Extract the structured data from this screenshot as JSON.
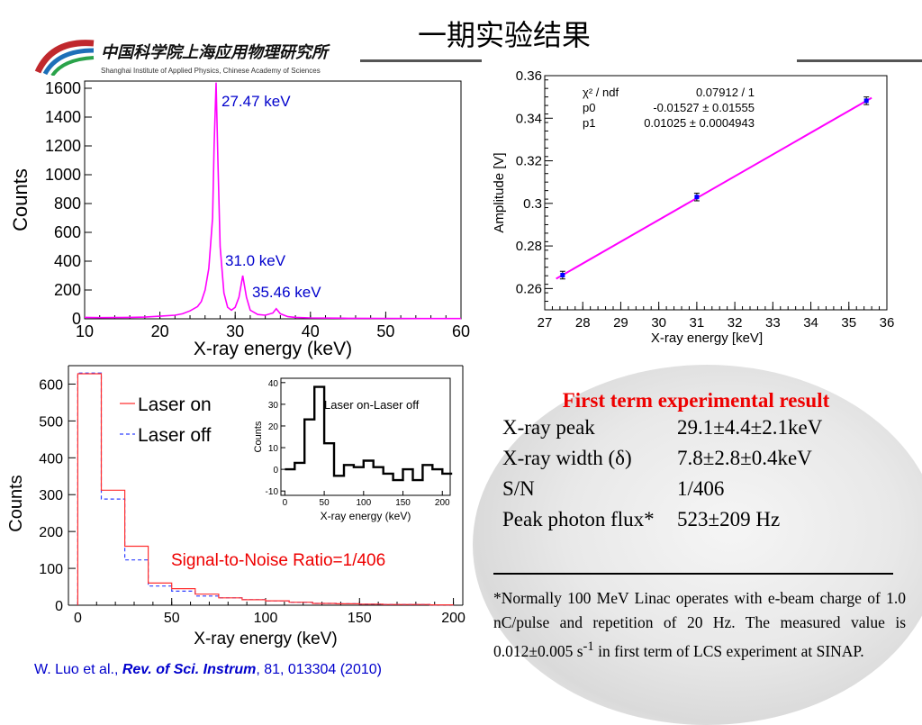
{
  "slide_title": "一期实验结果",
  "logo": {
    "institute_cn": "中国科学院上海应用物理研究所",
    "institute_en": "Shanghai Institute of Applied Physics, Chinese Academy of Sciences"
  },
  "colors": {
    "red": "#ee0000",
    "magenta": "#ff00ff",
    "blue": "#0000cc",
    "navy": "#000080"
  },
  "chart_data": [
    {
      "type": "line",
      "xlabel": "X-ray energy (keV)",
      "ylabel": "Counts",
      "xlim": [
        10,
        60
      ],
      "ylim": [
        0,
        1650
      ],
      "xticks": [
        "10",
        "20",
        "30",
        "40",
        "50",
        "60"
      ],
      "yticks": [
        "0",
        "200",
        "400",
        "600",
        "800",
        "1000",
        "1200",
        "1400",
        "1600"
      ],
      "annotations": [
        "27.47 keV",
        "31.0 keV",
        "35.46 keV"
      ],
      "series": [
        {
          "x": [
            10,
            12,
            14,
            16,
            18,
            20,
            22,
            23,
            24,
            25,
            25.5,
            26,
            26.5,
            27,
            27.2,
            27.47,
            27.7,
            28,
            28.5,
            29,
            29.5,
            30,
            30.5,
            31,
            31.5,
            32,
            33,
            34,
            35,
            35.46,
            36,
            37,
            38,
            40,
            45,
            50,
            55,
            60
          ],
          "y": [
            10,
            8,
            9,
            10,
            12,
            18,
            25,
            35,
            55,
            85,
            120,
            200,
            350,
            700,
            1200,
            1640,
            1100,
            500,
            180,
            80,
            60,
            80,
            150,
            300,
            150,
            60,
            30,
            25,
            40,
            70,
            35,
            15,
            10,
            6,
            4,
            3,
            2,
            2
          ]
        }
      ]
    },
    {
      "type": "scatter",
      "xlabel": "X-ray energy [keV]",
      "ylabel": "Amplitude [V]",
      "xlim": [
        27,
        36
      ],
      "ylim": [
        0.25,
        0.36
      ],
      "xticks": [
        "27",
        "28",
        "29",
        "30",
        "31",
        "32",
        "33",
        "34",
        "35",
        "36"
      ],
      "yticks": [
        "0.26",
        "0.28",
        "0.3",
        "0.32",
        "0.34",
        "0.36"
      ],
      "fit_stats": [
        {
          "label": "χ² / ndf",
          "value": "0.07912 / 1"
        },
        {
          "label": "p0",
          "value": "-0.01527 ± 0.01555"
        },
        {
          "label": "p1",
          "value": "0.01025 ± 0.0004943"
        }
      ],
      "points": [
        {
          "x": 27.47,
          "y": 0.2663,
          "err": 0.0018
        },
        {
          "x": 31.0,
          "y": 0.303,
          "err": 0.0018
        },
        {
          "x": 35.46,
          "y": 0.3482,
          "err": 0.0018
        }
      ],
      "fit": {
        "x": [
          27.3,
          35.6
        ],
        "y": [
          0.2646,
          0.3496
        ]
      }
    },
    {
      "type": "line",
      "xlabel": "X-ray energy (keV)",
      "ylabel": "Counts",
      "xlim": [
        -5,
        205
      ],
      "ylim": [
        0,
        650
      ],
      "xticks": [
        "0",
        "50",
        "100",
        "150",
        "200"
      ],
      "yticks": [
        "0",
        "100",
        "200",
        "300",
        "400",
        "500",
        "600"
      ],
      "annotation": "Signal-to-Noise Ratio=1/406",
      "legend": {
        "placement": "top-left",
        "entries": [
          "Laser on",
          "Laser off"
        ]
      },
      "bin_edges": [
        0,
        12.5,
        25,
        37.5,
        50,
        62.5,
        75,
        87.5,
        100,
        112.5,
        125,
        137.5,
        150,
        162.5,
        175,
        187.5,
        200
      ],
      "series": [
        {
          "name": "Laser on",
          "values": [
            628,
            312,
            160,
            60,
            45,
            30,
            20,
            15,
            12,
            8,
            5,
            4,
            3,
            2,
            2,
            1
          ]
        },
        {
          "name": "Laser off",
          "values": [
            630,
            288,
            123,
            52,
            38,
            25,
            20,
            15,
            12,
            8,
            5,
            4,
            3,
            2,
            2,
            1
          ]
        }
      ]
    },
    {
      "type": "line",
      "title": "Laser on-Laser off",
      "xlabel": "X-ray energy (keV)",
      "ylabel": "Counts",
      "xlim": [
        -5,
        210
      ],
      "ylim": [
        -12,
        42
      ],
      "xticks": [
        "0",
        "50",
        "100",
        "150",
        "200"
      ],
      "yticks": [
        "-10",
        "0",
        "10",
        "20",
        "30",
        "40"
      ],
      "bin_edges": [
        0,
        12.5,
        25,
        37.5,
        50,
        62.5,
        75,
        87.5,
        100,
        112.5,
        125,
        137.5,
        150,
        162.5,
        175,
        187.5,
        200,
        212.5
      ],
      "values": [
        0,
        3,
        23,
        38,
        12,
        -3,
        2,
        1,
        4,
        1,
        -2,
        -5,
        0,
        -5,
        2,
        0,
        -2
      ]
    }
  ],
  "result": {
    "title": "First term experimental result",
    "rows": [
      {
        "label": "X-ray peak",
        "value": "29.1±4.4±2.1keV"
      },
      {
        "label": "X-ray width (δ)",
        "value": "7.8±2.8±0.4keV"
      },
      {
        "label": "S/N",
        "value": "1/406"
      },
      {
        "label": "Peak photon flux*",
        "value": "523±209 Hz"
      }
    ]
  },
  "footnote": {
    "text_before_sup": "*Normally 100 MeV Linac operates with e-beam charge of 1.0 nC/pulse and repetition of 20 Hz. The  measured value is 0.012±0.005 s",
    "superscript": "-1",
    "text_after_sup": " in first term of LCS experiment at SINAP."
  },
  "citation": {
    "authors": "W. Luo et al., ",
    "journal": "Rev. of Sci. Instrum",
    "rest": ", 81, 013304 (2010)"
  }
}
